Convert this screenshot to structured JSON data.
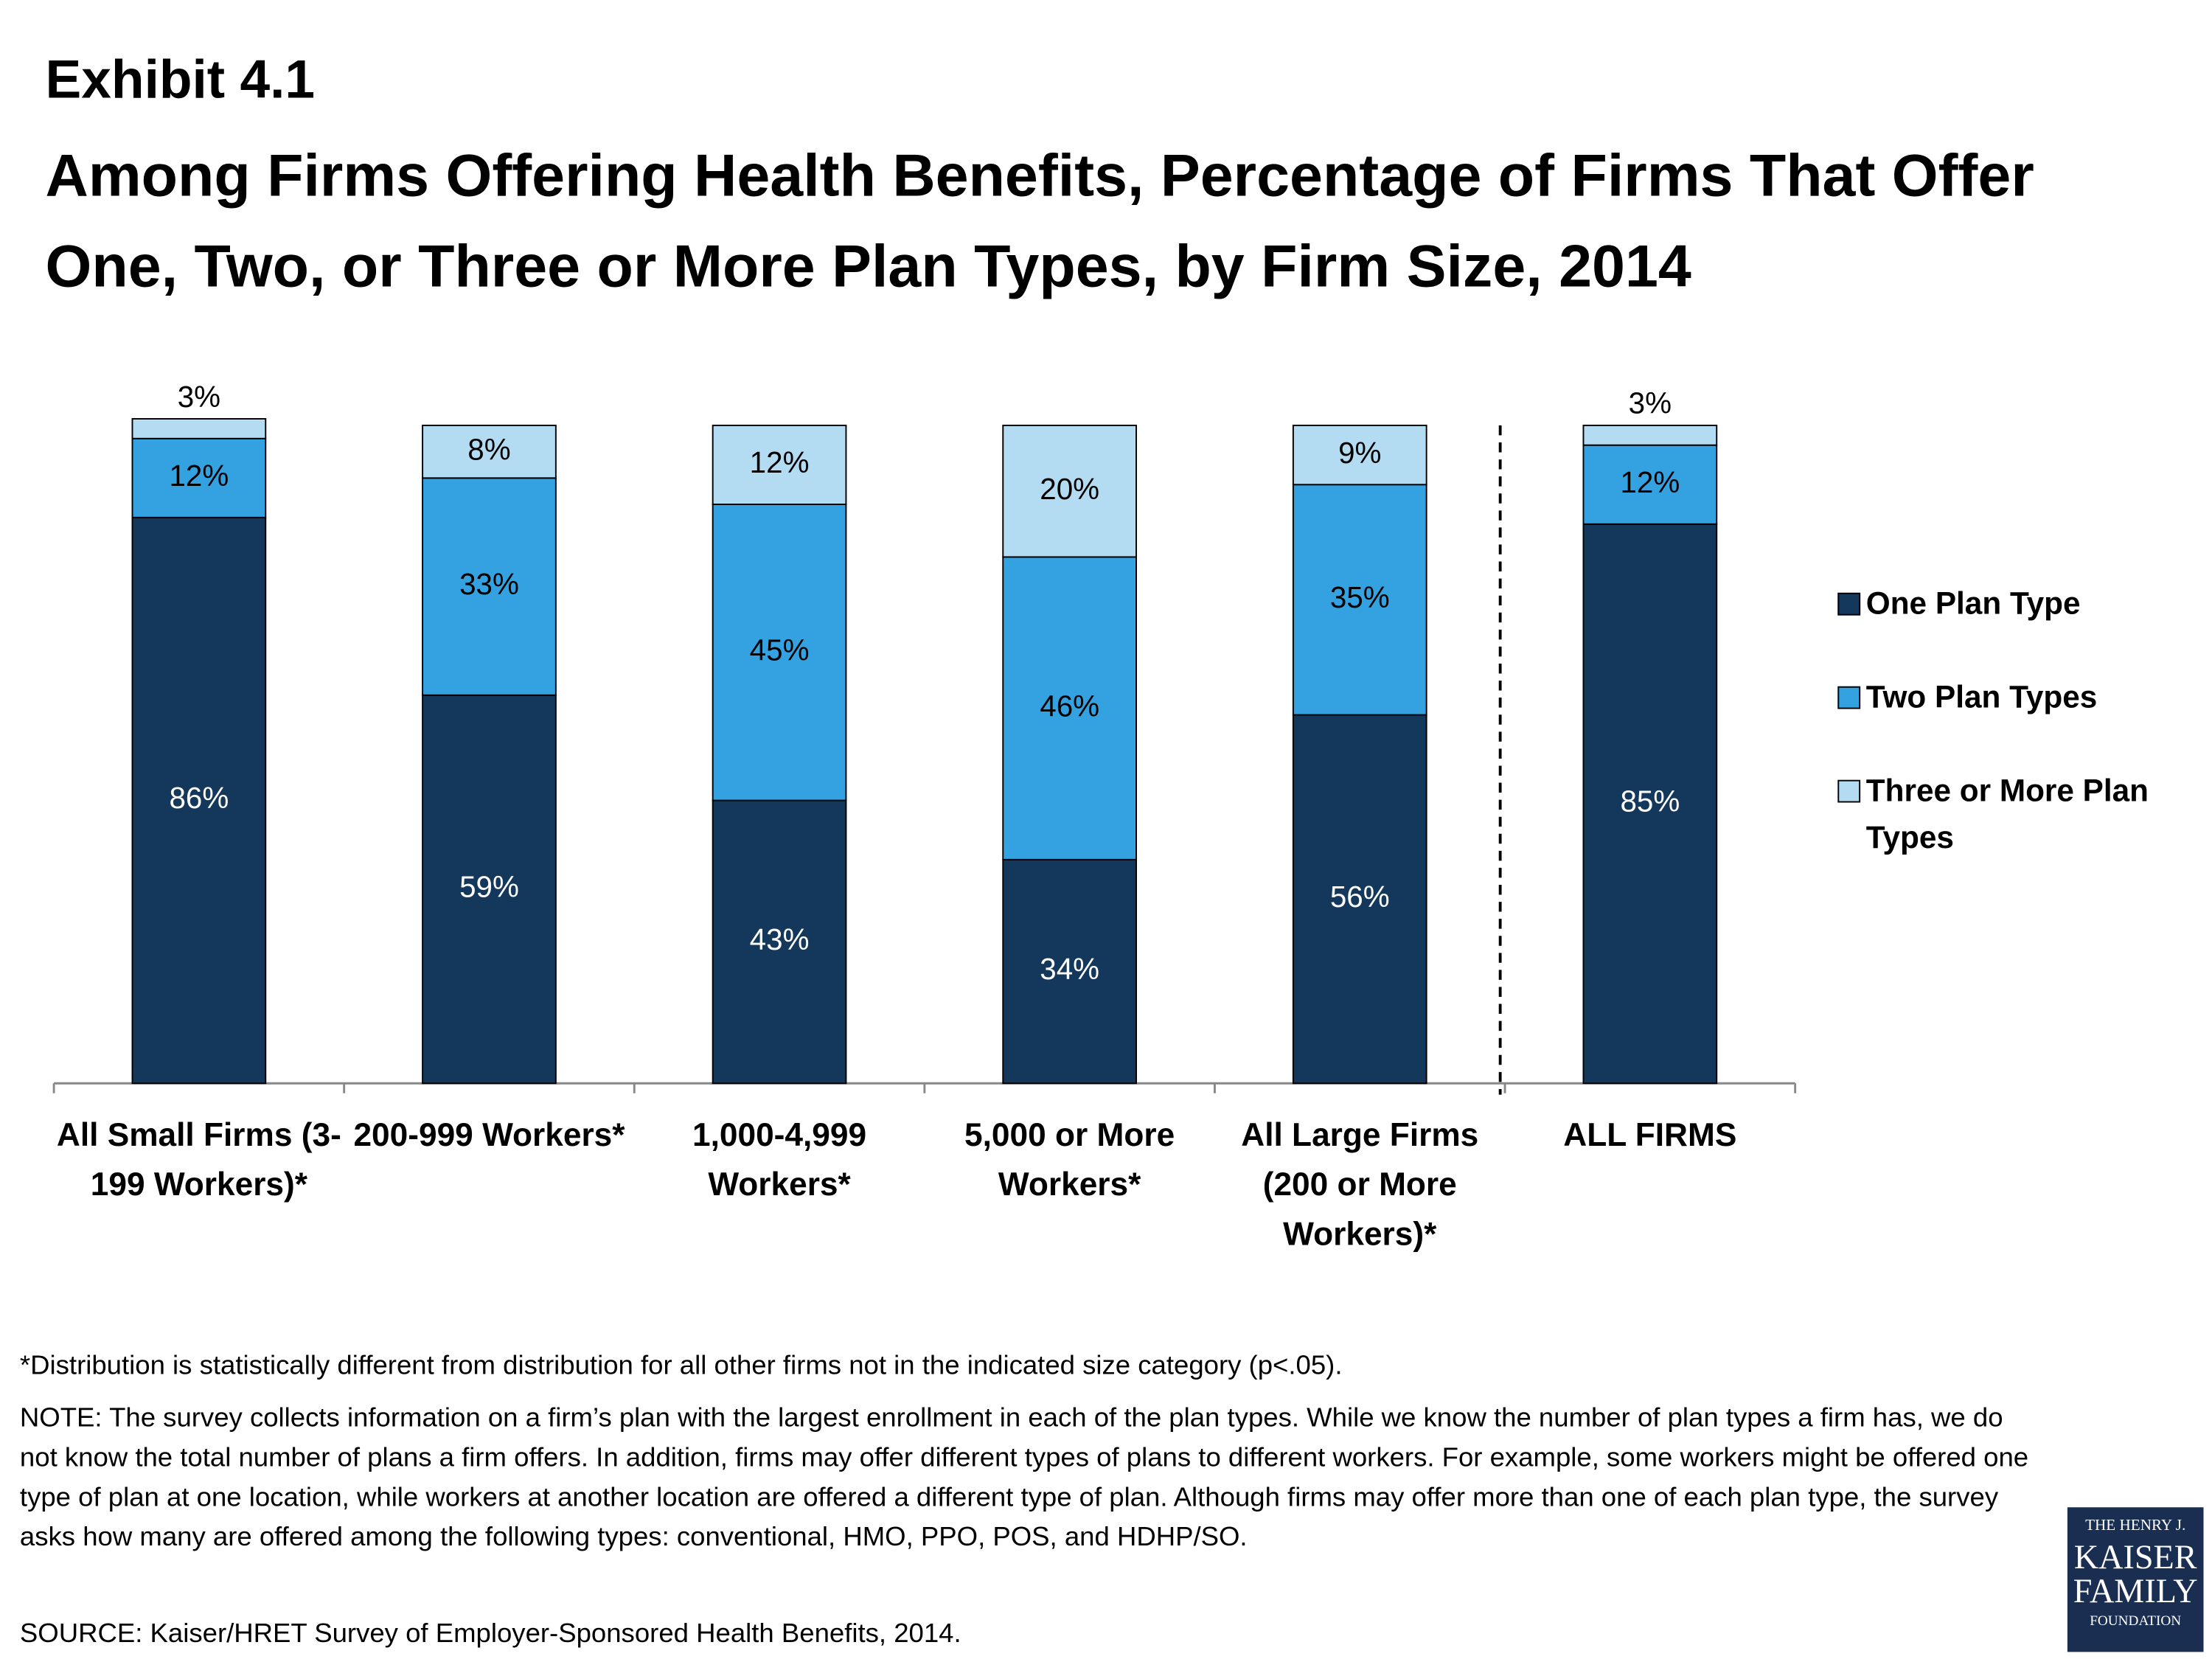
{
  "chart_data": {
    "type": "stacked_bar",
    "title": "Exhibit 4.1",
    "subtitle": "Among Firms Offering Health Benefits, Percentage of Firms That Offer One, Two, or Three or More Plan Types, by Firm Size, 2014",
    "categories": [
      "All Small Firms (3-199 Workers)*",
      "200-999 Workers*",
      "1,000-4,999 Workers*",
      "5,000 or More Workers*",
      "All Large Firms (200 or More Workers)*",
      "ALL FIRMS"
    ],
    "series": [
      {
        "name": "One Plan Type",
        "color": "#14375c",
        "values": [
          86,
          59,
          43,
          34,
          56,
          85
        ],
        "value_labels": [
          "86%",
          "59%",
          "43%",
          "34%",
          "56%",
          "85%"
        ]
      },
      {
        "name": "Two Plan Types",
        "color": "#34a2e0",
        "values": [
          12,
          33,
          45,
          46,
          35,
          12
        ],
        "value_labels": [
          "12%",
          "33%",
          "45%",
          "46%",
          "35%",
          "12%"
        ]
      },
      {
        "name": "Three or More Plan Types",
        "color": "#b3dcf3",
        "values": [
          3,
          8,
          12,
          20,
          9,
          3
        ],
        "value_labels": [
          "3%",
          "8%",
          "12%",
          "20%",
          "9%",
          "3%"
        ]
      }
    ],
    "ylim": [
      0,
      100
    ],
    "legend": "right"
  },
  "notes": [
    "*Distribution is statistically different from distribution for all other firms not in the indicated size category (p<.05).",
    "NOTE:  The survey collects information on a firm’s plan with the largest enrollment in each of the plan types. While we know the number of plan types a firm has, we do not know the total number of plans a firm offers. In addition, firms may offer different types of plans to different workers. For example, some workers might be offered one type of plan at one location, while workers at another location are offered a different type of plan.  Although firms may offer more than one of each plan type, the survey asks how many are offered among the following types: conventional, HMO, PPO, POS, and HDHP/SO.",
    "SOURCE: Kaiser/HRET Survey of Employer-Sponsored Health Benefits, 2014."
  ],
  "logo": [
    "THE HENRY J.",
    "KAISER",
    "FAMILY",
    "FOUNDATION"
  ]
}
